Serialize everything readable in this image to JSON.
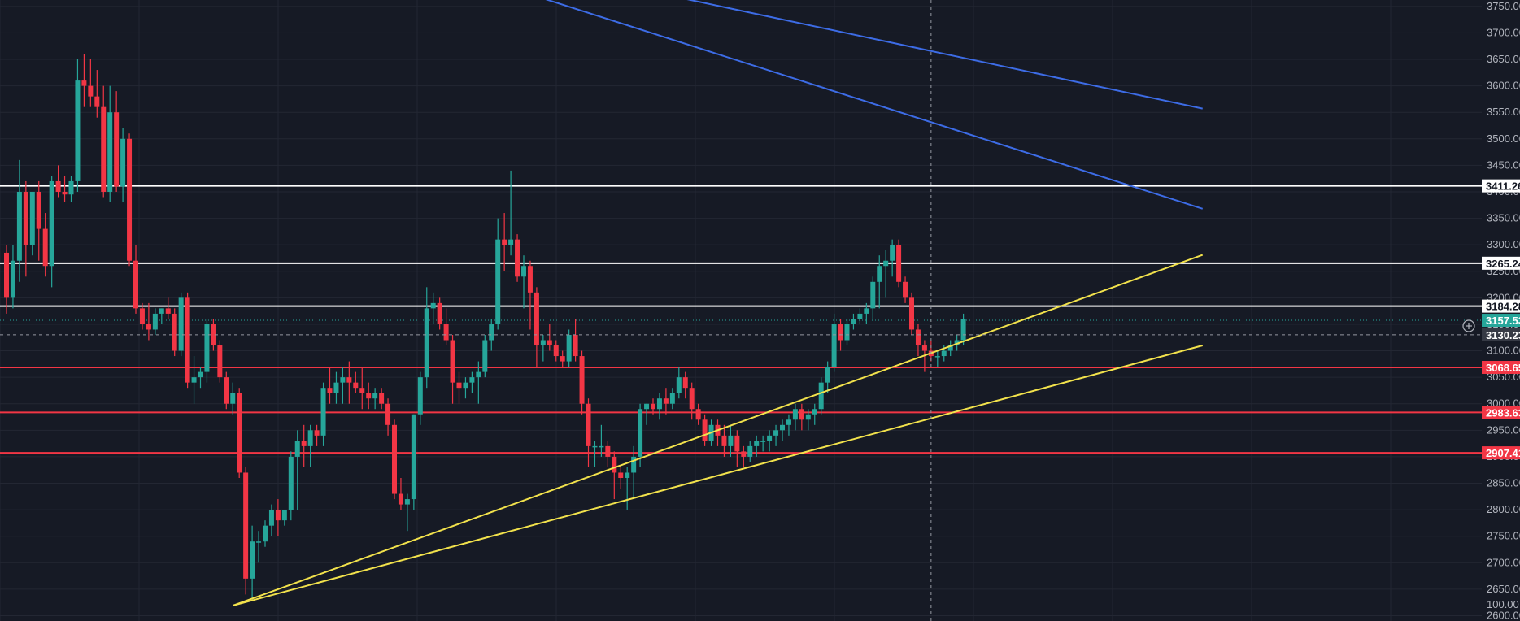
{
  "chart_data": {
    "type": "candlestick",
    "ylim": [
      2590,
      3762
    ],
    "y_ticks": [
      "3750.00",
      "3700.00",
      "3650.00",
      "3600.00",
      "3550.00",
      "3500.00",
      "3450.00",
      "3400.00",
      "3350.00",
      "3300.00",
      "3250.00",
      "3200.00",
      "3150.00",
      "3100.00",
      "3050.00",
      "3000.00",
      "2950.00",
      "2900.00",
      "2850.00",
      "2800.00",
      "2750.00",
      "2700.00",
      "2650.00",
      "2600.00"
    ],
    "volume_tick": "100.00",
    "price_lines": [
      {
        "price": 3411.26,
        "label": "3411.26",
        "color": "#ffffff",
        "tag_bg": "#ffffff",
        "tag_fg": "#131722"
      },
      {
        "price": 3265.24,
        "label": "3265.24",
        "color": "#ffffff",
        "tag_bg": "#ffffff",
        "tag_fg": "#131722"
      },
      {
        "price": 3184.28,
        "label": "3184.28",
        "color": "#ffffff",
        "tag_bg": "#ffffff",
        "tag_fg": "#131722"
      },
      {
        "price": 3068.65,
        "label": "3068.65",
        "color": "#f23645",
        "tag_bg": "#f23645",
        "tag_fg": "#ffffff"
      },
      {
        "price": 2983.63,
        "label": "2983.63",
        "color": "#f23645",
        "tag_bg": "#f23645",
        "tag_fg": "#ffffff"
      },
      {
        "price": 2907.41,
        "label": "2907.41",
        "color": "#f23645",
        "tag_bg": "#f23645",
        "tag_fg": "#ffffff"
      }
    ],
    "last_price": {
      "price": 3157.53,
      "label": "3157.53",
      "color": "#26a69a"
    },
    "crosshair": {
      "price": 3130.23,
      "label": "3130.23",
      "bar": 143
    },
    "trendlines": [
      {
        "color": "#f2e24c",
        "points": [
          [
            35,
            2619
          ],
          [
            185,
            3281
          ]
        ]
      },
      {
        "color": "#f2e24c",
        "points": [
          [
            35,
            2619
          ],
          [
            185,
            3110
          ]
        ]
      },
      {
        "color": "#3d6ce6",
        "points": [
          [
            74,
            3800
          ],
          [
            185,
            3368
          ]
        ]
      },
      {
        "color": "#3d6ce6",
        "points": [
          [
            95,
            3790
          ],
          [
            185,
            3557
          ]
        ]
      }
    ],
    "up_color": "#26a69a",
    "down_color": "#f23645",
    "candles": [
      [
        3285,
        3300,
        3170,
        3200
      ],
      [
        3200,
        3300,
        3180,
        3270
      ],
      [
        3270,
        3460,
        3230,
        3400
      ],
      [
        3400,
        3420,
        3240,
        3300
      ],
      [
        3300,
        3400,
        3280,
        3400
      ],
      [
        3400,
        3420,
        3270,
        3330
      ],
      [
        3330,
        3360,
        3240,
        3260
      ],
      [
        3260,
        3430,
        3220,
        3420
      ],
      [
        3420,
        3450,
        3390,
        3400
      ],
      [
        3400,
        3430,
        3380,
        3395
      ],
      [
        3395,
        3430,
        3380,
        3420
      ],
      [
        3420,
        3650,
        3400,
        3610
      ],
      [
        3610,
        3660,
        3560,
        3600
      ],
      [
        3600,
        3650,
        3560,
        3580
      ],
      [
        3580,
        3630,
        3540,
        3560
      ],
      [
        3560,
        3600,
        3390,
        3400
      ],
      [
        3400,
        3600,
        3380,
        3550
      ],
      [
        3550,
        3590,
        3400,
        3410
      ],
      [
        3410,
        3520,
        3380,
        3500
      ],
      [
        3500,
        3510,
        3260,
        3270
      ],
      [
        3270,
        3300,
        3170,
        3180
      ],
      [
        3180,
        3190,
        3140,
        3150
      ],
      [
        3150,
        3190,
        3120,
        3140
      ],
      [
        3140,
        3180,
        3130,
        3170
      ],
      [
        3170,
        3180,
        3150,
        3180
      ],
      [
        3180,
        3200,
        3160,
        3170
      ],
      [
        3170,
        3180,
        3090,
        3100
      ],
      [
        3100,
        3210,
        3090,
        3200
      ],
      [
        3200,
        3210,
        3030,
        3040
      ],
      [
        3040,
        3090,
        3000,
        3050
      ],
      [
        3050,
        3070,
        3030,
        3060
      ],
      [
        3060,
        3160,
        3040,
        3150
      ],
      [
        3150,
        3160,
        3100,
        3110
      ],
      [
        3110,
        3120,
        3040,
        3050
      ],
      [
        3050,
        3060,
        2990,
        3000
      ],
      [
        3000,
        3040,
        2980,
        3020
      ],
      [
        3020,
        3030,
        2860,
        2870
      ],
      [
        2870,
        2880,
        2640,
        2670
      ],
      [
        2670,
        2770,
        2630,
        2740
      ],
      [
        2740,
        2760,
        2700,
        2740
      ],
      [
        2740,
        2780,
        2730,
        2770
      ],
      [
        2770,
        2810,
        2750,
        2800
      ],
      [
        2800,
        2820,
        2750,
        2780
      ],
      [
        2780,
        2800,
        2770,
        2800
      ],
      [
        2800,
        2910,
        2780,
        2900
      ],
      [
        2900,
        2950,
        2800,
        2930
      ],
      [
        2930,
        2960,
        2880,
        2920
      ],
      [
        2920,
        2960,
        2880,
        2950
      ],
      [
        2950,
        2960,
        2920,
        2940
      ],
      [
        2940,
        3040,
        2920,
        3030
      ],
      [
        3030,
        3070,
        3000,
        3020
      ],
      [
        3020,
        3060,
        3000,
        3040
      ],
      [
        3040,
        3070,
        3000,
        3050
      ],
      [
        3050,
        3080,
        3000,
        3040
      ],
      [
        3040,
        3060,
        3020,
        3030
      ],
      [
        3030,
        3070,
        2990,
        3020
      ],
      [
        3020,
        3040,
        2990,
        3010
      ],
      [
        3010,
        3030,
        2990,
        3020
      ],
      [
        3020,
        3030,
        2990,
        3000
      ],
      [
        3000,
        3010,
        2940,
        2960
      ],
      [
        2960,
        2970,
        2820,
        2830
      ],
      [
        2830,
        2860,
        2800,
        2810
      ],
      [
        2810,
        2830,
        2760,
        2820
      ],
      [
        2820,
        2980,
        2800,
        2980
      ],
      [
        2980,
        3060,
        2960,
        3050
      ],
      [
        3050,
        3220,
        3030,
        3180
      ],
      [
        3180,
        3210,
        3150,
        3190
      ],
      [
        3190,
        3200,
        3140,
        3150
      ],
      [
        3150,
        3180,
        3110,
        3120
      ],
      [
        3120,
        3130,
        3000,
        3040
      ],
      [
        3040,
        3060,
        3000,
        3030
      ],
      [
        3030,
        3050,
        3010,
        3040
      ],
      [
        3040,
        3060,
        3020,
        3050
      ],
      [
        3050,
        3080,
        3000,
        3060
      ],
      [
        3060,
        3130,
        3050,
        3120
      ],
      [
        3120,
        3160,
        3100,
        3150
      ],
      [
        3150,
        3350,
        3140,
        3310
      ],
      [
        3310,
        3360,
        3250,
        3300
      ],
      [
        3300,
        3440,
        3280,
        3310
      ],
      [
        3310,
        3320,
        3230,
        3240
      ],
      [
        3240,
        3280,
        3180,
        3260
      ],
      [
        3260,
        3270,
        3140,
        3210
      ],
      [
        3210,
        3220,
        3070,
        3110
      ],
      [
        3110,
        3130,
        3080,
        3120
      ],
      [
        3120,
        3150,
        3100,
        3110
      ],
      [
        3110,
        3120,
        3080,
        3090
      ],
      [
        3090,
        3100,
        3070,
        3080
      ],
      [
        3080,
        3140,
        3070,
        3130
      ],
      [
        3130,
        3160,
        3080,
        3090
      ],
      [
        3090,
        3100,
        2980,
        3000
      ],
      [
        3000,
        3010,
        2880,
        2920
      ],
      [
        2920,
        2930,
        2880,
        2920
      ],
      [
        2920,
        2960,
        2900,
        2920
      ],
      [
        2920,
        2930,
        2880,
        2900
      ],
      [
        2900,
        2910,
        2820,
        2870
      ],
      [
        2870,
        2880,
        2840,
        2860
      ],
      [
        2860,
        2880,
        2800,
        2870
      ],
      [
        2870,
        2920,
        2820,
        2900
      ],
      [
        2900,
        3000,
        2880,
        2990
      ],
      [
        2990,
        3000,
        2960,
        3000
      ],
      [
        3000,
        3010,
        2980,
        2990
      ],
      [
        2990,
        3020,
        2970,
        3010
      ],
      [
        3010,
        3030,
        2980,
        3000
      ],
      [
        3000,
        3030,
        2990,
        3020
      ],
      [
        3020,
        3070,
        3010,
        3050
      ],
      [
        3050,
        3060,
        3010,
        3030
      ],
      [
        3030,
        3040,
        2970,
        2990
      ],
      [
        2990,
        3000,
        2960,
        2970
      ],
      [
        2970,
        2980,
        2920,
        2930
      ],
      [
        2930,
        2970,
        2920,
        2960
      ],
      [
        2960,
        2970,
        2920,
        2940
      ],
      [
        2940,
        2960,
        2900,
        2920
      ],
      [
        2920,
        2960,
        2900,
        2940
      ],
      [
        2940,
        2950,
        2880,
        2910
      ],
      [
        2910,
        2920,
        2880,
        2900
      ],
      [
        2900,
        2930,
        2890,
        2920
      ],
      [
        2920,
        2940,
        2900,
        2930
      ],
      [
        2930,
        2940,
        2910,
        2930
      ],
      [
        2930,
        2950,
        2910,
        2940
      ],
      [
        2940,
        2960,
        2920,
        2950
      ],
      [
        2950,
        2970,
        2930,
        2960
      ],
      [
        2960,
        2980,
        2940,
        2970
      ],
      [
        2970,
        3000,
        2950,
        2990
      ],
      [
        2990,
        3000,
        2950,
        2970
      ],
      [
        2970,
        2990,
        2950,
        2980
      ],
      [
        2980,
        3000,
        2960,
        2990
      ],
      [
        2990,
        3050,
        2980,
        3040
      ],
      [
        3040,
        3080,
        3020,
        3070
      ],
      [
        3070,
        3170,
        3060,
        3150
      ],
      [
        3150,
        3160,
        3100,
        3120
      ],
      [
        3120,
        3160,
        3110,
        3150
      ],
      [
        3150,
        3170,
        3140,
        3160
      ],
      [
        3160,
        3180,
        3150,
        3170
      ],
      [
        3170,
        3190,
        3150,
        3180
      ],
      [
        3180,
        3240,
        3160,
        3230
      ],
      [
        3230,
        3280,
        3180,
        3260
      ],
      [
        3260,
        3290,
        3200,
        3270
      ],
      [
        3270,
        3310,
        3240,
        3300
      ],
      [
        3300,
        3310,
        3220,
        3230
      ],
      [
        3230,
        3240,
        3190,
        3200
      ],
      [
        3200,
        3210,
        3130,
        3140
      ],
      [
        3140,
        3150,
        3090,
        3110
      ],
      [
        3110,
        3120,
        3060,
        3100
      ],
      [
        3100,
        3120,
        3080,
        3090
      ],
      [
        3090,
        3100,
        3070,
        3090
      ],
      [
        3090,
        3110,
        3080,
        3100
      ],
      [
        3100,
        3120,
        3090,
        3110
      ],
      [
        3110,
        3130,
        3100,
        3120
      ],
      [
        3120,
        3170,
        3110,
        3160
      ]
    ]
  }
}
